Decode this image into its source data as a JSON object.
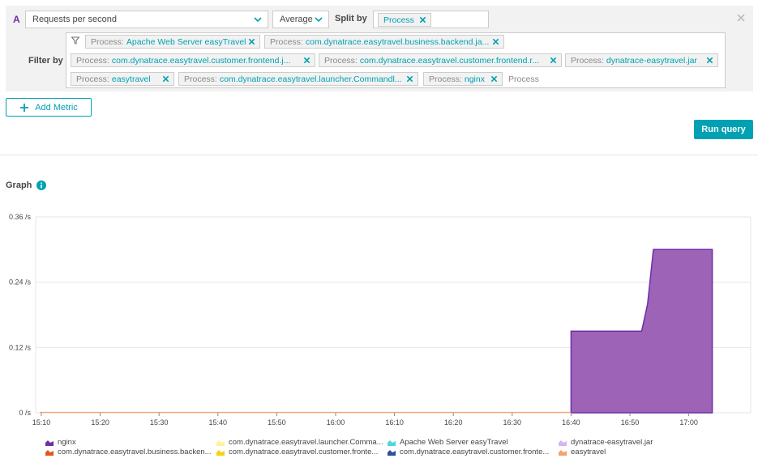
{
  "query": {
    "letter": "A",
    "metric": "Requests per second",
    "aggregation": "Average",
    "split_label": "Split by",
    "split_chip": "Process",
    "filter_label": "Filter by",
    "filter_placeholder": "Process",
    "filters": [
      {
        "key": "Process:",
        "value": "Apache Web Server easyTravel"
      },
      {
        "key": "Process:",
        "value": "com.dynatrace.easytravel.business.backend.ja..."
      },
      {
        "key": "Process:",
        "value": "com.dynatrace.easytravel.customer.frontend.j..."
      },
      {
        "key": "Process:",
        "value": "com.dynatrace.easytravel.customer.frontend.r..."
      },
      {
        "key": "Process:",
        "value": "dynatrace-easytravel.jar"
      },
      {
        "key": "Process:",
        "value": "easytravel"
      },
      {
        "key": "Process:",
        "value": "com.dynatrace.easytravel.launcher.Commandl..."
      },
      {
        "key": "Process:",
        "value": "nginx"
      }
    ]
  },
  "buttons": {
    "add_metric": "Add Metric",
    "run_query": "Run query"
  },
  "graph": {
    "title": "Graph"
  },
  "colors": {
    "accent": "#00a1b2",
    "nginx": "#9c63b7",
    "nginx_line": "#6f2da8"
  },
  "chart_data": {
    "type": "area",
    "ylim": [
      0,
      0.36
    ],
    "y_ticks": [
      "0 /s",
      "0.12 /s",
      "0.24 /s",
      "0.36 /s"
    ],
    "x_ticks": [
      "15:10",
      "15:20",
      "15:30",
      "15:40",
      "15:50",
      "16:00",
      "16:10",
      "16:20",
      "16:30",
      "16:40",
      "16:50",
      "17:00"
    ],
    "x_range_minutes": [
      906,
      1024
    ],
    "series": [
      {
        "name": "nginx",
        "color": "#9c63b7",
        "points": [
          [
            1000,
            0
          ],
          [
            1000,
            0.15
          ],
          [
            1012,
            0.15
          ],
          [
            1013,
            0.2
          ],
          [
            1014,
            0.3
          ],
          [
            1024,
            0.3
          ],
          [
            1024,
            0
          ]
        ]
      }
    ],
    "legend": [
      {
        "name": "nginx",
        "color": "#6f2da8"
      },
      {
        "name": "com.dynatrace.easytravel.launcher.Comma...",
        "color": "#fff29a"
      },
      {
        "name": "Apache Web Server easyTravel",
        "color": "#4fd5e0"
      },
      {
        "name": "dynatrace-easytravel.jar",
        "color": "#d8b3ef"
      },
      {
        "name": "com.dynatrace.easytravel.business.backen...",
        "color": "#e0581c"
      },
      {
        "name": "com.dynatrace.easytravel.customer.fronte...",
        "color": "#f5d30f"
      },
      {
        "name": "com.dynatrace.easytravel.customer.fronte...",
        "color": "#2d4ea4"
      },
      {
        "name": "easytravel",
        "color": "#f5a26b"
      }
    ]
  }
}
